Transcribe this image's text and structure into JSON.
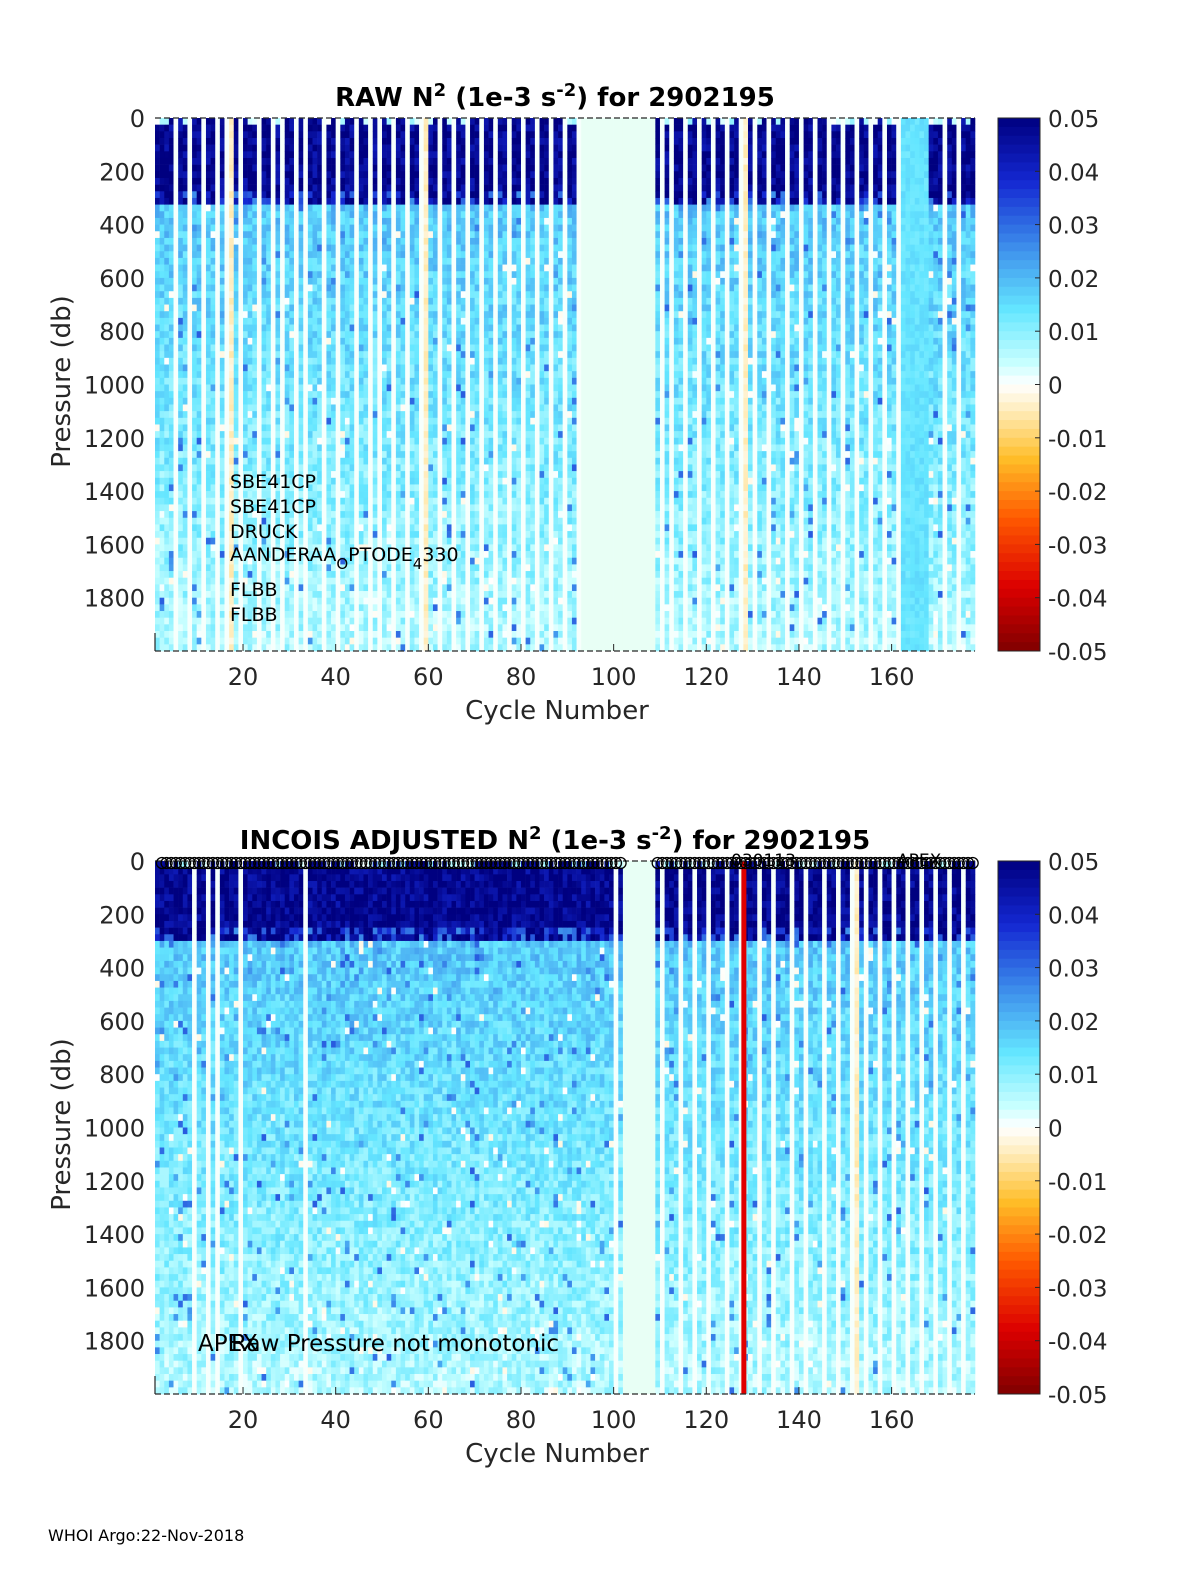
{
  "footer": "WHOI Argo:22-Nov-2018",
  "chart_data": [
    {
      "type": "heatmap",
      "title_parts": [
        "RAW N",
        "2",
        " (1e-3 s",
        "-2",
        ") for 2902195"
      ],
      "xlabel": "Cycle Number",
      "ylabel": "Pressure (db)",
      "xlim": [
        1,
        178
      ],
      "ylim": [
        0,
        2000
      ],
      "y_reversed": true,
      "xticks": [
        20,
        40,
        60,
        80,
        100,
        120,
        140,
        160
      ],
      "yticks": [
        0,
        200,
        400,
        600,
        800,
        1000,
        1200,
        1400,
        1600,
        1800
      ],
      "colorbar": {
        "colormap": "jet-white-center",
        "range": [
          -0.05,
          0.05
        ],
        "ticks": [
          0.05,
          0.04,
          0.03,
          0.02,
          0.01,
          0,
          -0.01,
          -0.02,
          -0.03,
          -0.04,
          -0.05
        ],
        "tick_labels": [
          "0.05",
          "0.04",
          "0.03",
          "0.02",
          "0.01",
          "0",
          "-0.01",
          "-0.02",
          "-0.03",
          "-0.04",
          "-0.05"
        ]
      },
      "annotations": [
        "SBE41CP",
        "SBE41CP",
        "DRUCK",
        "AANDERAA_OPTODE_4330",
        "FLBB",
        "FLBB"
      ],
      "sensor_label": {
        "base1": "AANDERAA",
        "sub1": "O",
        "base2": "PTODE",
        "sub2": "4",
        "base3": "330"
      },
      "mixed_layer_pressure": 330,
      "empty_cycle_ranges": [
        [
          93,
          108
        ]
      ],
      "gap_cycles": [
        5,
        8,
        11,
        14,
        16,
        19,
        23,
        26,
        28,
        31,
        33,
        37,
        40,
        44,
        47,
        49,
        52,
        55,
        58,
        62,
        65,
        68,
        71,
        74,
        77,
        80,
        83,
        86,
        89,
        92,
        110,
        112,
        115,
        118,
        121,
        124,
        127,
        130,
        133,
        137,
        140,
        143,
        146,
        149,
        152,
        155,
        158,
        161,
        171,
        174
      ],
      "warm_cycles": [
        17,
        59,
        128,
        152
      ],
      "light_cyan_cycles": [
        162,
        163,
        164,
        165,
        166,
        167
      ]
    },
    {
      "type": "heatmap",
      "title_parts": [
        "INCOIS  ADJUSTED N",
        "2",
        " (1e-3 s",
        "-2",
        ") for 2902195"
      ],
      "xlabel": "Cycle Number",
      "ylabel": "Pressure (db)",
      "xlim": [
        1,
        178
      ],
      "ylim": [
        0,
        2000
      ],
      "y_reversed": true,
      "xticks": [
        20,
        40,
        60,
        80,
        100,
        120,
        140,
        160
      ],
      "yticks": [
        0,
        200,
        400,
        600,
        800,
        1000,
        1200,
        1400,
        1600,
        1800
      ],
      "colorbar": {
        "colormap": "jet-white-center",
        "range": [
          -0.05,
          0.05
        ],
        "ticks": [
          0.05,
          0.04,
          0.03,
          0.02,
          0.01,
          0,
          -0.01,
          -0.02,
          -0.03,
          -0.04,
          -0.05
        ],
        "tick_labels": [
          "0.05",
          "0.04",
          "0.03",
          "0.02",
          "0.01",
          "0",
          "-0.01",
          "-0.02",
          "-0.03",
          "-0.04",
          "-0.05"
        ]
      },
      "annotations": [
        "APEX",
        "Raw Pressure not monotonic",
        "APEX",
        "030113"
      ],
      "mixed_layer_pressure": 300,
      "empty_cycle_ranges": [
        [
          102,
          108
        ]
      ],
      "gap_cycles": [
        9,
        12,
        14,
        19,
        33,
        100,
        110,
        114,
        117,
        120,
        124,
        127,
        131,
        134,
        138,
        141,
        145,
        148,
        151,
        154,
        157,
        160,
        163,
        166,
        169,
        172,
        175
      ],
      "warm_cycles": [
        19,
        152
      ],
      "marked_cycle": 128,
      "marked_cycle_color": "#e00000"
    }
  ]
}
